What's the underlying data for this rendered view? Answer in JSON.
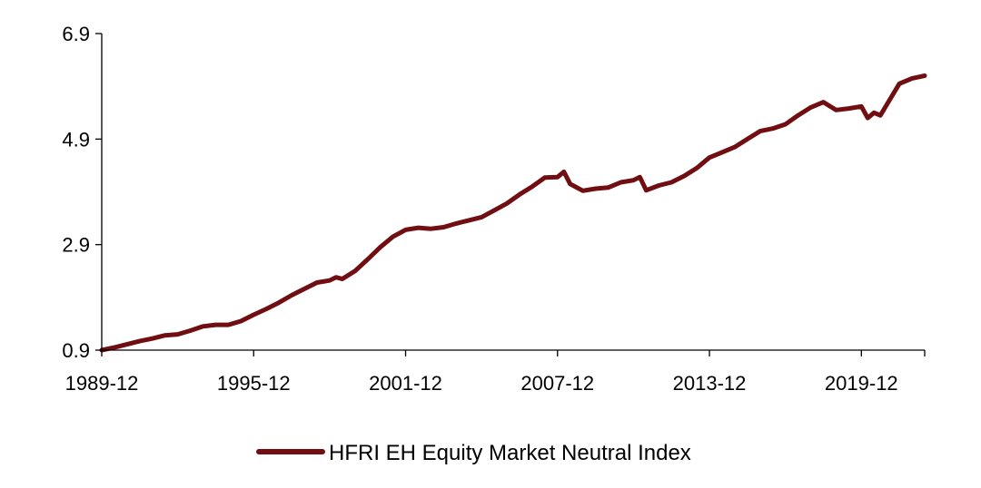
{
  "chart_data": {
    "type": "line",
    "title": "",
    "xlabel": "",
    "ylabel": "",
    "x_tick_labels": [
      "1989-12",
      "1995-12",
      "2001-12",
      "2007-12",
      "2013-12",
      "2019-12"
    ],
    "y_tick_labels": [
      "0.9",
      "2.9",
      "4.9",
      "6.9"
    ],
    "ylim": [
      0.9,
      6.9
    ],
    "xlim": [
      "1989-12",
      "2022-06"
    ],
    "grid": false,
    "legend_position": "bottom-center",
    "series": [
      {
        "name": "HFRI EH Equity Market Neutral Index",
        "color": "#700e12",
        "points": [
          [
            "1989-12",
            0.9
          ],
          [
            "1990-06",
            0.95
          ],
          [
            "1990-12",
            1.01
          ],
          [
            "1991-06",
            1.07
          ],
          [
            "1991-12",
            1.12
          ],
          [
            "1992-06",
            1.18
          ],
          [
            "1992-12",
            1.2
          ],
          [
            "1993-06",
            1.27
          ],
          [
            "1993-12",
            1.35
          ],
          [
            "1994-06",
            1.38
          ],
          [
            "1994-12",
            1.38
          ],
          [
            "1995-06",
            1.45
          ],
          [
            "1995-12",
            1.57
          ],
          [
            "1996-06",
            1.68
          ],
          [
            "1996-12",
            1.8
          ],
          [
            "1997-06",
            1.94
          ],
          [
            "1997-12",
            2.06
          ],
          [
            "1998-06",
            2.18
          ],
          [
            "1998-12",
            2.22
          ],
          [
            "1999-03",
            2.28
          ],
          [
            "1999-06",
            2.25
          ],
          [
            "1999-12",
            2.4
          ],
          [
            "2000-06",
            2.62
          ],
          [
            "2000-12",
            2.85
          ],
          [
            "2001-06",
            3.05
          ],
          [
            "2001-12",
            3.18
          ],
          [
            "2002-06",
            3.22
          ],
          [
            "2002-12",
            3.2
          ],
          [
            "2003-06",
            3.23
          ],
          [
            "2003-12",
            3.3
          ],
          [
            "2004-06",
            3.36
          ],
          [
            "2004-12",
            3.42
          ],
          [
            "2005-06",
            3.55
          ],
          [
            "2005-12",
            3.68
          ],
          [
            "2006-06",
            3.85
          ],
          [
            "2006-12",
            4.0
          ],
          [
            "2007-06",
            4.17
          ],
          [
            "2007-12",
            4.18
          ],
          [
            "2008-03",
            4.28
          ],
          [
            "2008-06",
            4.05
          ],
          [
            "2008-12",
            3.92
          ],
          [
            "2009-06",
            3.96
          ],
          [
            "2009-12",
            3.98
          ],
          [
            "2010-06",
            4.08
          ],
          [
            "2010-12",
            4.12
          ],
          [
            "2011-03",
            4.18
          ],
          [
            "2011-06",
            3.93
          ],
          [
            "2011-12",
            4.02
          ],
          [
            "2012-06",
            4.08
          ],
          [
            "2012-12",
            4.2
          ],
          [
            "2013-06",
            4.35
          ],
          [
            "2013-12",
            4.55
          ],
          [
            "2014-06",
            4.65
          ],
          [
            "2014-12",
            4.75
          ],
          [
            "2015-06",
            4.9
          ],
          [
            "2015-12",
            5.05
          ],
          [
            "2016-06",
            5.1
          ],
          [
            "2016-12",
            5.18
          ],
          [
            "2017-06",
            5.35
          ],
          [
            "2017-12",
            5.5
          ],
          [
            "2018-06",
            5.6
          ],
          [
            "2018-12",
            5.45
          ],
          [
            "2019-06",
            5.48
          ],
          [
            "2019-12",
            5.52
          ],
          [
            "2020-03",
            5.3
          ],
          [
            "2020-06",
            5.4
          ],
          [
            "2020-09",
            5.35
          ],
          [
            "2020-12",
            5.55
          ],
          [
            "2021-06",
            5.95
          ],
          [
            "2021-12",
            6.05
          ],
          [
            "2022-06",
            6.1
          ]
        ]
      }
    ]
  }
}
